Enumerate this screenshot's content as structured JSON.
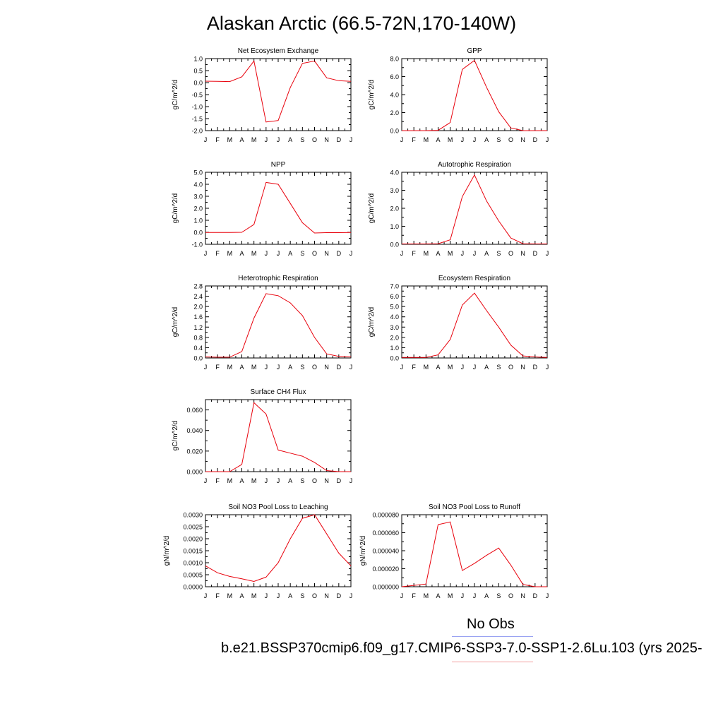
{
  "figure": {
    "title": "Alaskan Arctic (66.5-72N,170-140W)",
    "obs_label": "No Obs",
    "case_label": "b.e21.BSSP370cmip6.f09_g17.CMIP6-SSP3-7.0-SSP1-2.6Lu.103 (yrs 2025-",
    "obs_line_color": "#9aa3f2",
    "case_line_color": "#f2a0a0",
    "series_color": "#e8000b"
  },
  "chart_data": [
    {
      "type": "line",
      "title": "Net Ecosystem Exchange",
      "ylabel": "gC/m^2/d",
      "categories": [
        "J",
        "F",
        "M",
        "A",
        "M",
        "J",
        "J",
        "A",
        "S",
        "O",
        "N",
        "D",
        "J"
      ],
      "values": [
        0.06,
        0.05,
        0.04,
        0.24,
        0.9,
        -1.64,
        -1.58,
        -0.2,
        0.8,
        0.9,
        0.2,
        0.08,
        0.05
      ],
      "ylim": [
        -2.0,
        1.0
      ],
      "yticks": [
        "-2.0",
        "-1.5",
        "-1.0",
        "-0.5",
        "0.0",
        "0.5",
        "1.0"
      ]
    },
    {
      "type": "line",
      "title": "GPP",
      "ylabel": "gC/m^2/d",
      "categories": [
        "J",
        "F",
        "M",
        "A",
        "M",
        "J",
        "J",
        "A",
        "S",
        "O",
        "N",
        "D",
        "J"
      ],
      "values": [
        0.0,
        0.0,
        0.0,
        0.03,
        0.9,
        6.8,
        7.8,
        4.8,
        2.1,
        0.3,
        0.0,
        0.0,
        0.0
      ],
      "ylim": [
        0.0,
        8.0
      ],
      "yticks": [
        "0.0",
        "2.0",
        "4.0",
        "6.0",
        "8.0"
      ]
    },
    {
      "type": "line",
      "title": "NPP",
      "ylabel": "gC/m^2/d",
      "categories": [
        "J",
        "F",
        "M",
        "A",
        "M",
        "J",
        "J",
        "A",
        "S",
        "O",
        "N",
        "D",
        "J"
      ],
      "values": [
        -0.02,
        -0.02,
        -0.01,
        0.0,
        0.65,
        4.15,
        4.0,
        2.4,
        0.8,
        -0.06,
        -0.03,
        -0.03,
        -0.02
      ],
      "ylim": [
        -1.0,
        5.0
      ],
      "yticks": [
        "-1.0",
        "0.0",
        "1.0",
        "2.0",
        "3.0",
        "4.0",
        "5.0"
      ]
    },
    {
      "type": "line",
      "title": "Autotrophic Respiration",
      "ylabel": "gC/m^2/d",
      "categories": [
        "J",
        "F",
        "M",
        "A",
        "M",
        "J",
        "J",
        "A",
        "S",
        "O",
        "N",
        "D",
        "J"
      ],
      "values": [
        0.02,
        0.02,
        0.02,
        0.03,
        0.25,
        2.65,
        3.85,
        2.4,
        1.3,
        0.35,
        0.03,
        0.02,
        0.02
      ],
      "ylim": [
        0.0,
        4.0
      ],
      "yticks": [
        "0.0",
        "1.0",
        "2.0",
        "3.0",
        "4.0"
      ]
    },
    {
      "type": "line",
      "title": "Heterotrophic Respiration",
      "ylabel": "gC/m^2/d",
      "categories": [
        "J",
        "F",
        "M",
        "A",
        "M",
        "J",
        "J",
        "A",
        "S",
        "O",
        "N",
        "D",
        "J"
      ],
      "values": [
        0.04,
        0.03,
        0.03,
        0.25,
        1.55,
        2.5,
        2.42,
        2.14,
        1.65,
        0.8,
        0.16,
        0.06,
        0.04
      ],
      "ylim": [
        0.0,
        2.8
      ],
      "yticks": [
        "0.0",
        "0.4",
        "0.8",
        "1.2",
        "1.6",
        "2.0",
        "2.4",
        "2.8"
      ]
    },
    {
      "type": "line",
      "title": "Ecosystem Respiration",
      "ylabel": "gC/m^2/d",
      "categories": [
        "J",
        "F",
        "M",
        "A",
        "M",
        "J",
        "J",
        "A",
        "S",
        "O",
        "N",
        "D",
        "J"
      ],
      "values": [
        0.05,
        0.05,
        0.05,
        0.3,
        1.8,
        5.15,
        6.3,
        4.6,
        3.0,
        1.25,
        0.2,
        0.1,
        0.05
      ],
      "ylim": [
        0.0,
        7.0
      ],
      "yticks": [
        "0.0",
        "1.0",
        "2.0",
        "3.0",
        "4.0",
        "5.0",
        "6.0",
        "7.0"
      ]
    },
    {
      "type": "line",
      "title": "Surface CH4 Flux",
      "ylabel": "gC/m^2/d",
      "categories": [
        "J",
        "F",
        "M",
        "A",
        "M",
        "J",
        "J",
        "A",
        "S",
        "O",
        "N",
        "D",
        "J"
      ],
      "values": [
        0.0,
        0.0,
        0.0,
        0.007,
        0.067,
        0.056,
        0.021,
        0.018,
        0.015,
        0.009,
        0.001,
        0.0,
        0.0
      ],
      "ylim": [
        0.0,
        0.07
      ],
      "yticks": [
        "0.000",
        "0.020",
        "0.040",
        "0.060"
      ]
    },
    {
      "type": "line",
      "title": "Soil NO3 Pool Loss to Leaching",
      "ylabel": "gN/m^2/d",
      "categories": [
        "J",
        "F",
        "M",
        "A",
        "M",
        "J",
        "J",
        "A",
        "S",
        "O",
        "N",
        "D",
        "J"
      ],
      "values": [
        0.00087,
        0.00058,
        0.00043,
        0.00033,
        0.00022,
        0.0004,
        0.001,
        0.002,
        0.00285,
        0.003,
        0.0022,
        0.0014,
        0.00087
      ],
      "ylim": [
        0.0,
        0.003
      ],
      "yticks": [
        "0.0000",
        "0.0005",
        "0.0010",
        "0.0015",
        "0.0020",
        "0.0025",
        "0.0030"
      ]
    },
    {
      "type": "line",
      "title": "Soil NO3 Pool Loss to Runoff",
      "ylabel": "gN/m^2/d",
      "categories": [
        "J",
        "F",
        "M",
        "A",
        "M",
        "J",
        "J",
        "A",
        "S",
        "O",
        "N",
        "D",
        "J"
      ],
      "values": [
        0.0,
        1.5e-06,
        3e-06,
        6.9e-05,
        7.2e-05,
        1.8e-05,
        2.6e-05,
        3.5e-05,
        4.3e-05,
        2.4e-05,
        2.5e-06,
        0.0,
        0.0
      ],
      "ylim": [
        0.0,
        8e-05
      ],
      "yticks": [
        "0.000000",
        "0.000020",
        "0.000040",
        "0.000060",
        "0.000080"
      ]
    }
  ]
}
